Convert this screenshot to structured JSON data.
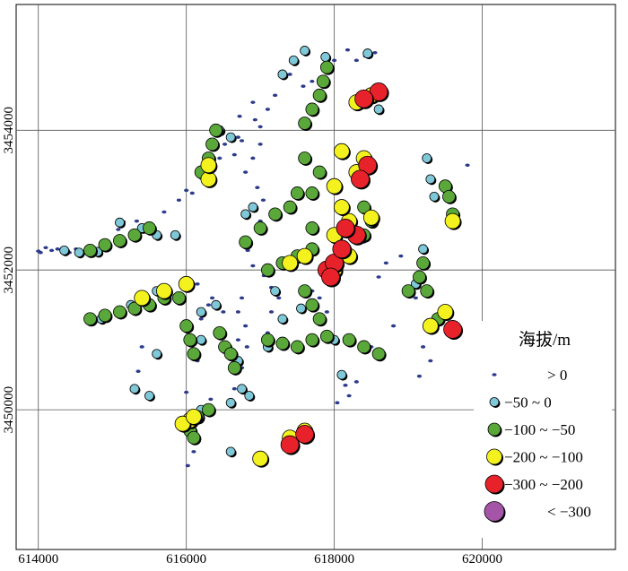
{
  "chart_data": {
    "type": "scatter",
    "title": "",
    "xlabel": "",
    "ylabel": "",
    "xlim": [
      613700,
      621800
    ],
    "ylim": [
      3448000,
      3455800
    ],
    "x_ticks": [
      {
        "value": 614000,
        "label": "614000"
      },
      {
        "value": 616000,
        "label": "616000"
      },
      {
        "value": 618000,
        "label": "618000"
      },
      {
        "value": 620000,
        "label": "620000"
      }
    ],
    "y_ticks": [
      {
        "value": 3450000,
        "label": "3450000"
      },
      {
        "value": 3452000,
        "label": "3452000"
      },
      {
        "value": 3454000,
        "label": "3454000"
      }
    ],
    "grid": true,
    "legend": {
      "title": "海拔/m",
      "placement": "bottom-right",
      "entries": [
        {
          "label": "> 0",
          "color": "#2e3b8c"
        },
        {
          "label": "−50 ~ 0",
          "color": "#7fc8d8"
        },
        {
          "label": "−100 ~ −50",
          "color": "#5aa83a"
        },
        {
          "label": "−200 ~ −100",
          "color": "#f4f21e"
        },
        {
          "label": "−300 ~ −200",
          "color": "#e8222a"
        },
        {
          "label": "< −300",
          "color": "#a455a8"
        }
      ]
    },
    "series": [
      {
        "name": "> 0",
        "class": 0,
        "color": "#2e3b8c",
        "points": [
          [
            614000,
            3452270
          ],
          [
            614030,
            3452250
          ],
          [
            614100,
            3452320
          ],
          [
            614180,
            3452280
          ],
          [
            614260,
            3452300
          ],
          [
            614330,
            3452260
          ],
          [
            614420,
            3452250
          ],
          [
            614510,
            3452300
          ],
          [
            615080,
            3452580
          ],
          [
            615150,
            3452690
          ],
          [
            615330,
            3452700
          ],
          [
            615500,
            3452660
          ],
          [
            615700,
            3452830
          ],
          [
            615900,
            3453000
          ],
          [
            616000,
            3453140
          ],
          [
            616080,
            3453100
          ],
          [
            616170,
            3453340
          ],
          [
            616450,
            3453600
          ],
          [
            616520,
            3453800
          ],
          [
            616650,
            3453650
          ],
          [
            616700,
            3453900
          ],
          [
            616720,
            3454200
          ],
          [
            616750,
            3453850
          ],
          [
            616800,
            3453400
          ],
          [
            616900,
            3453600
          ],
          [
            616960,
            3453180
          ],
          [
            617040,
            3453000
          ],
          [
            617000,
            3452700
          ],
          [
            617000,
            3454050
          ],
          [
            617100,
            3454300
          ],
          [
            617200,
            3454500
          ],
          [
            616900,
            3454400
          ],
          [
            616930,
            3454150
          ],
          [
            617400,
            3454800
          ],
          [
            617000,
            3453800
          ],
          [
            616830,
            3452280
          ],
          [
            616900,
            3452060
          ],
          [
            617050,
            3451920
          ],
          [
            617150,
            3451750
          ],
          [
            617250,
            3451600
          ],
          [
            616750,
            3451600
          ],
          [
            616700,
            3451400
          ],
          [
            616800,
            3451200
          ],
          [
            616300,
            3451500
          ],
          [
            616150,
            3451800
          ],
          [
            616200,
            3451300
          ],
          [
            616060,
            3451000
          ],
          [
            616150,
            3450700
          ],
          [
            616000,
            3450250
          ],
          [
            616330,
            3450150
          ],
          [
            616650,
            3450300
          ],
          [
            616750,
            3450600
          ],
          [
            616820,
            3450900
          ],
          [
            617700,
            3451700
          ],
          [
            617800,
            3451600
          ],
          [
            617900,
            3451400
          ],
          [
            618100,
            3452200
          ],
          [
            618400,
            3452400
          ],
          [
            618700,
            3452100
          ],
          [
            618600,
            3451900
          ],
          [
            618900,
            3452200
          ],
          [
            619100,
            3451600
          ],
          [
            619300,
            3450700
          ],
          [
            619200,
            3450900
          ],
          [
            619150,
            3450480
          ],
          [
            618200,
            3450200
          ],
          [
            618150,
            3450350
          ],
          [
            618040,
            3450100
          ],
          [
            618300,
            3450400
          ],
          [
            618500,
            3450900
          ],
          [
            618800,
            3451200
          ],
          [
            618300,
            3455000
          ],
          [
            618420,
            3455060
          ],
          [
            618550,
            3455110
          ],
          [
            618180,
            3455150
          ],
          [
            618000,
            3455000
          ],
          [
            617900,
            3454920
          ],
          [
            617700,
            3454700
          ],
          [
            617580,
            3454630
          ],
          [
            616350,
            3451600
          ],
          [
            615400,
            3450900
          ],
          [
            615350,
            3450550
          ],
          [
            616700,
            3451000
          ],
          [
            617100,
            3451100
          ],
          [
            616150,
            3449600
          ],
          [
            616100,
            3449400
          ],
          [
            616020,
            3449200
          ],
          [
            616500,
            3451400
          ],
          [
            617150,
            3451400
          ],
          [
            617300,
            3451300
          ],
          [
            619800,
            3453500
          ]
        ]
      },
      {
        "name": "−50 ~ 0",
        "class": 1,
        "color": "#7fc8d8",
        "points": [
          [
            614350,
            3452280
          ],
          [
            614550,
            3452250
          ],
          [
            614800,
            3452260
          ],
          [
            615100,
            3452680
          ],
          [
            615400,
            3452600
          ],
          [
            615600,
            3452500
          ],
          [
            615850,
            3452500
          ],
          [
            616800,
            3452800
          ],
          [
            616900,
            3452900
          ],
          [
            617200,
            3451700
          ],
          [
            617550,
            3451450
          ],
          [
            616600,
            3450100
          ],
          [
            616200,
            3450000
          ],
          [
            616200,
            3451400
          ],
          [
            616200,
            3451000
          ],
          [
            616600,
            3449400
          ],
          [
            617300,
            3454800
          ],
          [
            617600,
            3455140
          ],
          [
            617450,
            3455000
          ],
          [
            616600,
            3453900
          ],
          [
            616450,
            3454000
          ],
          [
            615600,
            3451700
          ],
          [
            615250,
            3451500
          ],
          [
            615100,
            3451400
          ],
          [
            614850,
            3451300
          ],
          [
            615600,
            3450800
          ],
          [
            615300,
            3450300
          ],
          [
            615500,
            3450200
          ],
          [
            616400,
            3451500
          ],
          [
            616700,
            3450700
          ],
          [
            616750,
            3450300
          ],
          [
            617100,
            3450900
          ],
          [
            617300,
            3451300
          ],
          [
            618000,
            3451000
          ],
          [
            618600,
            3454300
          ],
          [
            619250,
            3453600
          ],
          [
            619300,
            3453300
          ],
          [
            619350,
            3453050
          ],
          [
            618450,
            3455100
          ],
          [
            617880,
            3455050
          ],
          [
            619100,
            3451800
          ],
          [
            619200,
            3452300
          ],
          [
            618100,
            3450500
          ],
          [
            616850,
            3450200
          ]
        ]
      },
      {
        "name": "−100 ~ −50",
        "class": 2,
        "color": "#5aa83a",
        "points": [
          [
            614700,
            3452280
          ],
          [
            614900,
            3452360
          ],
          [
            615100,
            3452420
          ],
          [
            615300,
            3452500
          ],
          [
            615500,
            3452600
          ],
          [
            614700,
            3451300
          ],
          [
            614900,
            3451350
          ],
          [
            615100,
            3451400
          ],
          [
            615300,
            3451450
          ],
          [
            615500,
            3451500
          ],
          [
            615700,
            3451600
          ],
          [
            615900,
            3451600
          ],
          [
            616200,
            3453400
          ],
          [
            616300,
            3453600
          ],
          [
            616350,
            3453800
          ],
          [
            616400,
            3454000
          ],
          [
            616000,
            3451200
          ],
          [
            616050,
            3451000
          ],
          [
            616100,
            3450800
          ],
          [
            616450,
            3451100
          ],
          [
            616520,
            3450900
          ],
          [
            616600,
            3450800
          ],
          [
            616650,
            3450600
          ],
          [
            616000,
            3449800
          ],
          [
            616050,
            3449700
          ],
          [
            616100,
            3449600
          ],
          [
            616150,
            3449900
          ],
          [
            616300,
            3450000
          ],
          [
            616800,
            3452400
          ],
          [
            617000,
            3452600
          ],
          [
            617200,
            3452800
          ],
          [
            617400,
            3452900
          ],
          [
            617500,
            3453100
          ],
          [
            617100,
            3452000
          ],
          [
            617300,
            3452100
          ],
          [
            617500,
            3452200
          ],
          [
            617700,
            3452300
          ],
          [
            617600,
            3451700
          ],
          [
            617700,
            3451500
          ],
          [
            617800,
            3451300
          ],
          [
            617100,
            3451000
          ],
          [
            617300,
            3450950
          ],
          [
            617500,
            3450900
          ],
          [
            617700,
            3451000
          ],
          [
            617900,
            3451050
          ],
          [
            618200,
            3451000
          ],
          [
            618400,
            3450900
          ],
          [
            618600,
            3450800
          ],
          [
            618400,
            3452900
          ],
          [
            618500,
            3452700
          ],
          [
            618400,
            3452500
          ],
          [
            617600,
            3454100
          ],
          [
            617700,
            3454300
          ],
          [
            617800,
            3454500
          ],
          [
            617850,
            3454700
          ],
          [
            617900,
            3454900
          ],
          [
            617600,
            3453600
          ],
          [
            617800,
            3453400
          ],
          [
            617700,
            3453100
          ],
          [
            617700,
            3452600
          ],
          [
            619200,
            3452100
          ],
          [
            619150,
            3451900
          ],
          [
            619250,
            3451700
          ],
          [
            619400,
            3451300
          ],
          [
            619500,
            3453200
          ],
          [
            619550,
            3453050
          ],
          [
            619600,
            3452800
          ],
          [
            619000,
            3451700
          ]
        ]
      },
      {
        "name": "−200 ~ −100",
        "class": 3,
        "color": "#f4f21e",
        "points": [
          [
            615700,
            3451700
          ],
          [
            615400,
            3451600
          ],
          [
            616000,
            3451800
          ],
          [
            616300,
            3453300
          ],
          [
            616300,
            3453500
          ],
          [
            616050,
            3449850
          ],
          [
            615950,
            3449800
          ],
          [
            616100,
            3449900
          ],
          [
            617400,
            3452100
          ],
          [
            617600,
            3452200
          ],
          [
            618000,
            3452500
          ],
          [
            618200,
            3452700
          ],
          [
            618500,
            3452750
          ],
          [
            618000,
            3452000
          ],
          [
            618200,
            3452200
          ],
          [
            618000,
            3453200
          ],
          [
            618100,
            3452900
          ],
          [
            618300,
            3454400
          ],
          [
            618500,
            3454500
          ],
          [
            617000,
            3449300
          ],
          [
            617400,
            3449600
          ],
          [
            617600,
            3449700
          ],
          [
            618400,
            3453600
          ],
          [
            618300,
            3453400
          ],
          [
            619600,
            3452700
          ],
          [
            619500,
            3451400
          ],
          [
            618100,
            3453700
          ],
          [
            619300,
            3451200
          ]
        ]
      },
      {
        "name": "−300 ~ −200",
        "class": 4,
        "color": "#e8222a",
        "points": [
          [
            617900,
            3452000
          ],
          [
            618000,
            3452100
          ],
          [
            617950,
            3451900
          ],
          [
            618100,
            3452300
          ],
          [
            618300,
            3452500
          ],
          [
            618600,
            3454550
          ],
          [
            618400,
            3454450
          ],
          [
            618450,
            3453500
          ],
          [
            618350,
            3453300
          ],
          [
            617400,
            3449500
          ],
          [
            617600,
            3449650
          ],
          [
            619600,
            3451150
          ],
          [
            618150,
            3452600
          ]
        ]
      }
    ]
  }
}
